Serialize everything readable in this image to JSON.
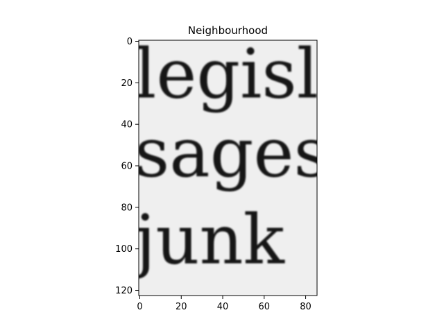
{
  "chart_data": {
    "type": "image",
    "title": "Neighbourhood",
    "xlabel": "",
    "ylabel": "",
    "xlim": [
      -0.5,
      85.5
    ],
    "ylim": [
      122.5,
      -0.5
    ],
    "xticks": [
      0,
      20,
      40,
      60,
      80
    ],
    "yticks": [
      0,
      20,
      40,
      60,
      80,
      100,
      120
    ],
    "grid": false,
    "image_content": {
      "colormap": "gray",
      "background": "#efefef",
      "text_lines": [
        {
          "text": "legisla",
          "baseline_y": 27
        },
        {
          "text": "sages",
          "baseline_y": 65
        },
        {
          "text": "junk",
          "baseline_y": 107
        }
      ]
    }
  }
}
